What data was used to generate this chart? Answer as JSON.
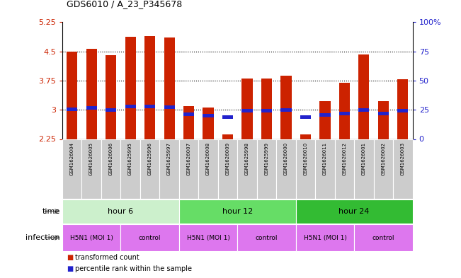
{
  "title": "GDS6010 / A_23_P345678",
  "samples": [
    "GSM1626004",
    "GSM1626005",
    "GSM1626006",
    "GSM1625995",
    "GSM1625996",
    "GSM1625997",
    "GSM1626007",
    "GSM1626008",
    "GSM1626009",
    "GSM1625998",
    "GSM1625999",
    "GSM1626000",
    "GSM1626010",
    "GSM1626011",
    "GSM1626012",
    "GSM1626001",
    "GSM1626002",
    "GSM1626003"
  ],
  "red_values": [
    4.5,
    4.56,
    4.4,
    4.88,
    4.9,
    4.85,
    3.1,
    3.05,
    2.37,
    3.8,
    3.8,
    3.88,
    2.37,
    3.22,
    3.7,
    4.42,
    3.22,
    3.78
  ],
  "blue_values": [
    3.02,
    3.05,
    3.0,
    3.08,
    3.08,
    3.06,
    2.88,
    2.85,
    2.82,
    2.97,
    2.97,
    3.0,
    2.82,
    2.87,
    2.9,
    3.0,
    2.9,
    2.97
  ],
  "ylim": [
    2.25,
    5.25
  ],
  "yticks": [
    2.25,
    3.0,
    3.75,
    4.5,
    5.25
  ],
  "ytick_labels": [
    "2.25",
    "3",
    "3.75",
    "4.5",
    "5.25"
  ],
  "right_yticks": [
    0,
    25,
    50,
    75,
    100
  ],
  "right_ytick_labels": [
    "0",
    "25",
    "50",
    "75",
    "100%"
  ],
  "bar_color": "#cc2200",
  "blue_color": "#2222cc",
  "time_labels": [
    "hour 6",
    "hour 12",
    "hour 24"
  ],
  "time_colors": [
    "#ccf0cc",
    "#66dd66",
    "#33bb33"
  ],
  "time_boundaries": [
    0,
    6,
    12,
    18
  ],
  "infection_labels": [
    "H5N1 (MOI 1)",
    "control",
    "H5N1 (MOI 1)",
    "control",
    "H5N1 (MOI 1)",
    "control"
  ],
  "infection_boundaries": [
    0,
    3,
    6,
    9,
    12,
    15,
    18
  ],
  "infection_color": "#dd77ee",
  "sample_box_color": "#cccccc",
  "bar_width": 0.55,
  "left_tick_color": "#cc2200",
  "right_tick_color": "#2222cc",
  "grid_yticks": [
    3.0,
    3.75,
    4.5
  ]
}
